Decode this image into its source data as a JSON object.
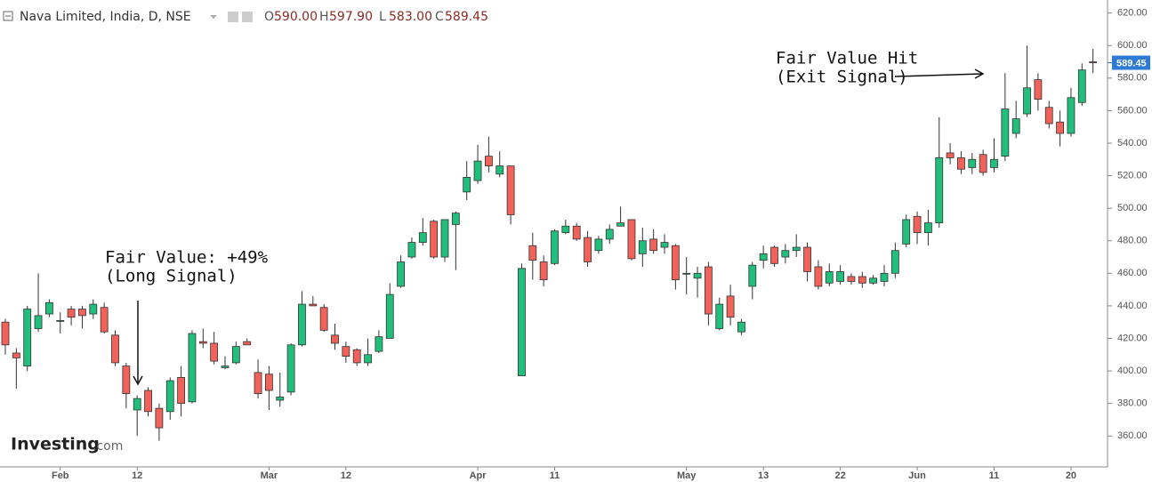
{
  "chart_data": {
    "type": "candlestick",
    "title": "Nava Limited, India, D, NSE",
    "header_ohlc": [
      {
        "key": "O",
        "value": "590.00"
      },
      {
        "key": "H",
        "value": "597.90"
      },
      {
        "key": "L",
        "value": "583.00"
      },
      {
        "key": "C",
        "value": "589.45"
      }
    ],
    "logo": [
      "Investing",
      ".com"
    ],
    "categories": [
      null,
      null,
      null,
      null,
      null,
      "Feb",
      null,
      null,
      null,
      null,
      null,
      null,
      "12",
      null,
      null,
      null,
      null,
      null,
      null,
      null,
      null,
      null,
      null,
      null,
      "Mar",
      null,
      null,
      null,
      null,
      null,
      null,
      "12",
      null,
      null,
      null,
      null,
      null,
      null,
      null,
      null,
      null,
      null,
      null,
      "Apr",
      null,
      null,
      null,
      null,
      null,
      null,
      "11",
      null,
      null,
      null,
      null,
      null,
      null,
      null,
      null,
      null,
      null,
      null,
      "May",
      null,
      null,
      null,
      null,
      null,
      null,
      "13",
      null,
      null,
      null,
      null,
      null,
      null,
      "22",
      null,
      null,
      null,
      null,
      null,
      null,
      "Jun",
      null,
      null,
      null,
      null,
      null,
      null,
      "11",
      null,
      null,
      null,
      null,
      null,
      null,
      "20",
      null,
      null
    ],
    "open": [
      430,
      411,
      403,
      426,
      435,
      431,
      438,
      438,
      435,
      439,
      422,
      403,
      376,
      388,
      377,
      375,
      396,
      381,
      418,
      417,
      402,
      405,
      418,
      399,
      398,
      382,
      387,
      416,
      441,
      439,
      422,
      415,
      413,
      405,
      412,
      420,
      452,
      470,
      479,
      492,
      470,
      490,
      510,
      517,
      532,
      521,
      526,
      397,
      477,
      467,
      466,
      485,
      489,
      482,
      474,
      481,
      489,
      493,
      472,
      481,
      476,
      477,
      460,
      457,
      464,
      426,
      446,
      424,
      452,
      468,
      476,
      470,
      474,
      476,
      464,
      454,
      455,
      458,
      458,
      454,
      455,
      460,
      478,
      495,
      485,
      491,
      534,
      531,
      525,
      533,
      525,
      532,
      546,
      558,
      579,
      562,
      553,
      546,
      565,
      590
    ],
    "high": [
      432,
      414,
      440,
      460,
      444,
      436,
      440,
      440,
      444,
      442,
      425,
      405,
      385,
      390,
      380,
      396,
      403,
      425,
      426,
      424,
      409,
      418,
      420,
      407,
      403,
      399,
      417,
      449,
      446,
      441,
      429,
      418,
      414,
      420,
      425,
      454,
      471,
      482,
      494,
      493,
      493,
      498,
      529,
      539,
      544,
      535,
      526,
      466,
      485,
      471,
      487,
      493,
      491,
      486,
      483,
      490,
      501,
      493,
      488,
      487,
      484,
      478,
      470,
      464,
      467,
      445,
      453,
      432,
      467,
      477,
      477,
      478,
      484,
      479,
      468,
      466,
      465,
      460,
      461,
      459,
      465,
      479,
      496,
      498,
      499,
      556,
      540,
      535,
      534,
      536,
      543,
      583,
      566,
      600,
      583,
      566,
      560,
      574,
      589,
      597.9
    ],
    "low": [
      410,
      389,
      400,
      424,
      433,
      423,
      428,
      426,
      432,
      423,
      403,
      377,
      360,
      372,
      357,
      370,
      372,
      380,
      414,
      404,
      401,
      404,
      416,
      383,
      376,
      378,
      385,
      415,
      440,
      424,
      413,
      405,
      403,
      403,
      411,
      420,
      451,
      469,
      477,
      469,
      467,
      462,
      505,
      515,
      522,
      519,
      490,
      397,
      456,
      452,
      465,
      484,
      480,
      464,
      472,
      478,
      489,
      468,
      464,
      472,
      472,
      450,
      447,
      445,
      428,
      425,
      428,
      422,
      444,
      463,
      464,
      466,
      470,
      455,
      450,
      452,
      453,
      453,
      451,
      453,
      452,
      457,
      476,
      478,
      477,
      488,
      527,
      521,
      521,
      520,
      522,
      529,
      543,
      556,
      560,
      549,
      538,
      544,
      563,
      583
    ],
    "close": [
      416,
      408,
      438,
      434,
      442,
      431,
      433,
      434,
      441,
      424,
      405,
      386,
      383,
      375,
      365,
      394,
      380,
      423,
      417,
      406,
      403,
      415,
      416,
      386,
      388,
      384,
      416,
      441,
      440,
      425,
      417,
      409,
      405,
      410,
      421,
      447,
      467,
      479,
      485,
      470,
      493,
      497,
      519,
      529,
      526,
      526,
      496,
      463,
      468,
      456,
      486,
      489,
      481,
      467,
      481,
      487,
      491,
      469,
      480,
      474,
      479,
      456,
      460,
      460,
      435,
      441,
      433,
      430,
      465,
      472,
      466,
      474,
      476,
      461,
      452,
      461,
      461,
      455,
      454,
      457,
      460,
      474,
      493,
      485,
      491,
      531,
      531,
      524,
      530,
      522,
      530,
      561,
      555,
      574,
      567,
      552,
      546,
      568,
      585,
      589.45
    ],
    "up_color": "#21bf7b",
    "down_color": "#f0625a",
    "last_price": 589.45,
    "last_price_color": "#2e7bd6",
    "ylim": [
      341,
      628
    ],
    "yticks": [
      {
        "value": 360,
        "label": "360.00"
      },
      {
        "value": 380,
        "label": "380.00"
      },
      {
        "value": 400,
        "label": "400.00"
      },
      {
        "value": 420,
        "label": "420.00"
      },
      {
        "value": 440,
        "label": "440.00"
      },
      {
        "value": 460,
        "label": "460.00"
      },
      {
        "value": 480,
        "label": "480.00"
      },
      {
        "value": 500,
        "label": "500.00"
      },
      {
        "value": 520,
        "label": "520.00"
      },
      {
        "value": 540,
        "label": "540.00"
      },
      {
        "value": 560,
        "label": "560.00"
      },
      {
        "value": 580,
        "label": "580.00"
      },
      {
        "value": 600,
        "label": "600.00"
      },
      {
        "value": 620,
        "label": "620.00"
      }
    ],
    "annotations": [
      [
        "Fair Value: +49%",
        "(Long Signal)"
      ],
      [
        "Fair Value Hit",
        "(Exit Signal)"
      ]
    ]
  }
}
